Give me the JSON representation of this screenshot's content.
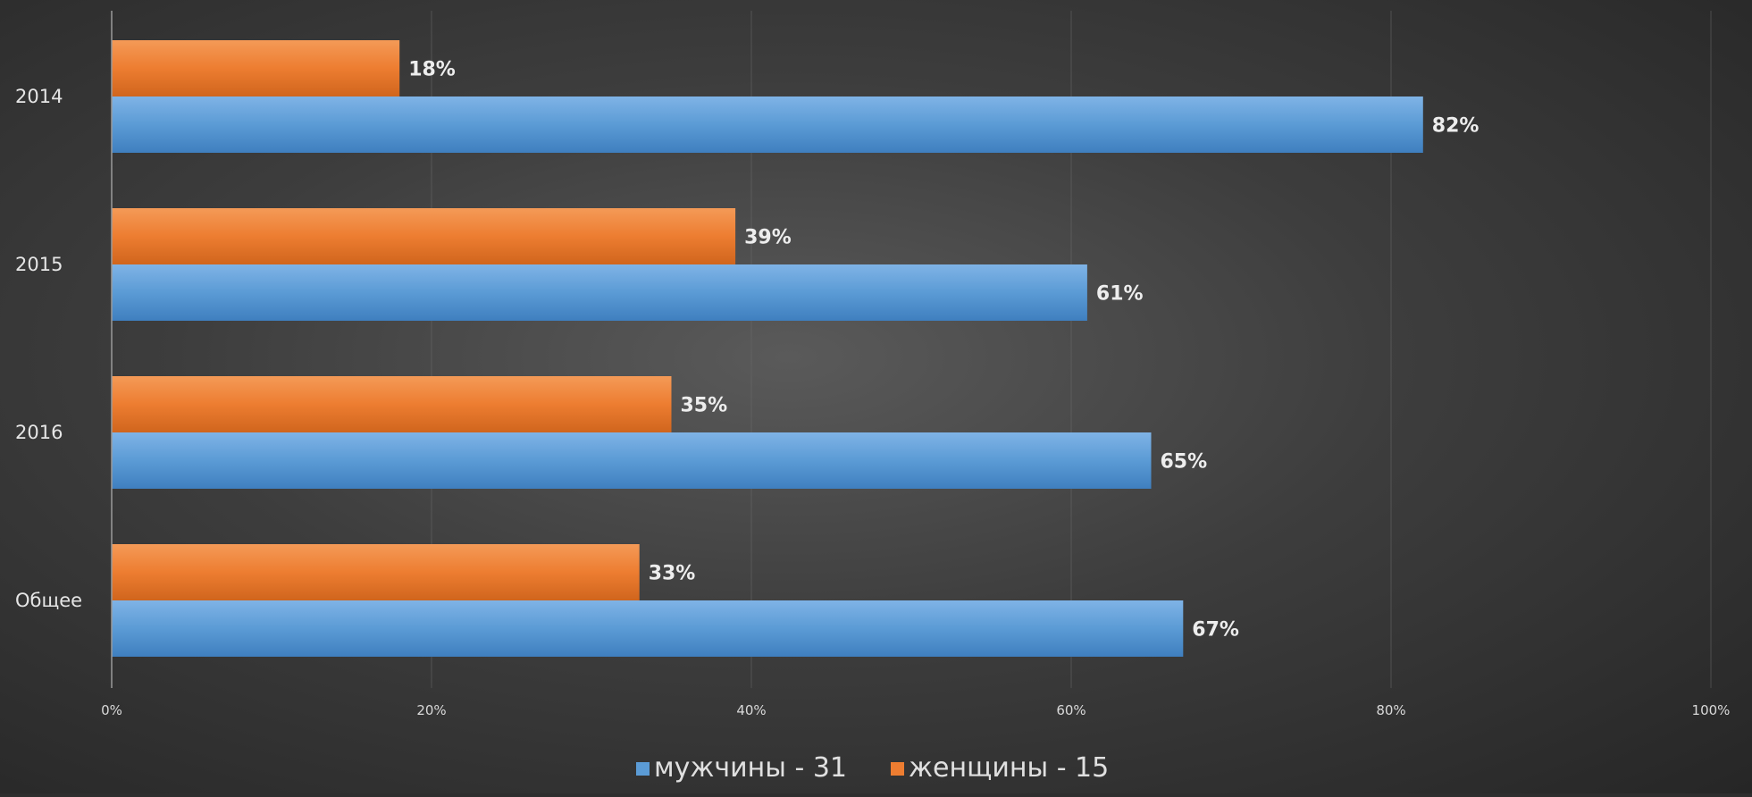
{
  "chart_data": {
    "type": "bar",
    "orientation": "horizontal",
    "categories": [
      "2014",
      "2015",
      "2016",
      "Общее"
    ],
    "series": [
      {
        "name": "женщины - 15",
        "color": "#ed7d31",
        "values": [
          18,
          39,
          35,
          33
        ],
        "labels": [
          "18%",
          "39%",
          "35%",
          "33%"
        ]
      },
      {
        "name": "мужчины - 31",
        "color": "#5b9bd5",
        "values": [
          82,
          61,
          65,
          67
        ],
        "labels": [
          "82%",
          "61%",
          "65%",
          "67%"
        ]
      }
    ],
    "xlim": [
      0,
      100
    ],
    "xticks": [
      0,
      20,
      40,
      60,
      80,
      100
    ],
    "xtick_labels": [
      "0%",
      "20%",
      "40%",
      "60%",
      "80%",
      "100%"
    ],
    "legend": {
      "position": "bottom",
      "entries": [
        {
          "label": "мужчины - 31",
          "color": "#5b9bd5"
        },
        {
          "label": "женщины - 15",
          "color": "#ed7d31"
        }
      ]
    },
    "grid": true,
    "title": ""
  }
}
